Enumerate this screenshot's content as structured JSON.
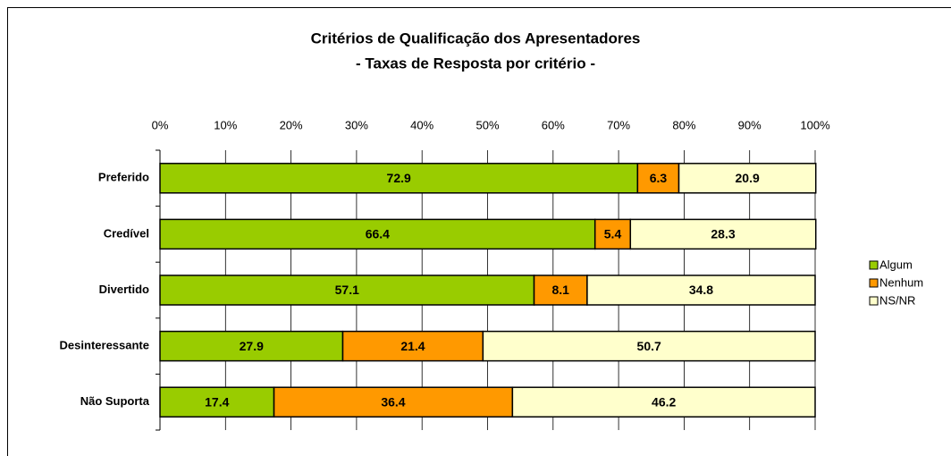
{
  "chart_data": {
    "type": "stacked_barh",
    "title": "Critérios de Qualificação dos Apresentadores",
    "subtitle": "- Taxas de Resposta por critério -",
    "categories": [
      "Preferido",
      "Credível",
      "Divertido",
      "Desinteressante",
      "Não Suporta"
    ],
    "series": [
      {
        "name": "Algum",
        "color": "#99cc00",
        "values": [
          72.9,
          66.4,
          57.1,
          27.9,
          17.4
        ]
      },
      {
        "name": "Nenhum",
        "color": "#ff9900",
        "values": [
          6.3,
          5.4,
          8.1,
          21.4,
          36.4
        ]
      },
      {
        "name": "NS/NR",
        "color": "#ffffcc",
        "values": [
          20.9,
          28.3,
          34.8,
          50.7,
          46.2
        ]
      }
    ],
    "xlim": [
      0,
      100
    ],
    "xticks": [
      {
        "value": 0,
        "label": "0%"
      },
      {
        "value": 10,
        "label": "10%"
      },
      {
        "value": 20,
        "label": "20%"
      },
      {
        "value": 30,
        "label": "30%"
      },
      {
        "value": 40,
        "label": "40%"
      },
      {
        "value": 50,
        "label": "50%"
      },
      {
        "value": 60,
        "label": "60%"
      },
      {
        "value": 70,
        "label": "70%"
      },
      {
        "value": 80,
        "label": "80%"
      },
      {
        "value": 90,
        "label": "90%"
      },
      {
        "value": 100,
        "label": "100%"
      }
    ],
    "grid": true,
    "legend": "right"
  }
}
